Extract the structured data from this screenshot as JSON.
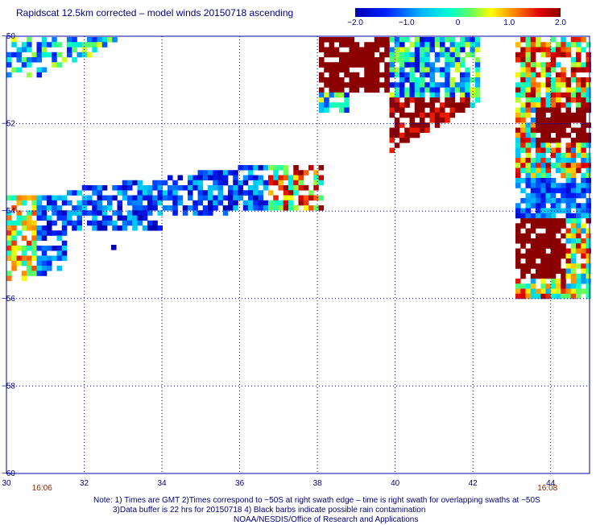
{
  "title": "Rapidscat 12.5km corrected – model winds 20150718 ascending",
  "colorbar": {
    "tick_labels": [
      "−2.0",
      "−1.0",
      "0",
      "1.0",
      "2.0"
    ],
    "tick_values": [
      -2.0,
      -1.0,
      0,
      1.0,
      2.0
    ],
    "range": [
      -2.0,
      2.0
    ]
  },
  "map": {
    "lon_range": [
      30,
      45
    ],
    "lat_range": [
      -50,
      -60
    ],
    "lon_ticks": [
      "30",
      "32",
      "34",
      "36",
      "38",
      "40",
      "42",
      "44"
    ],
    "lat_ticks": [
      "−50",
      "−52",
      "−54",
      "−56",
      "−58",
      "−60"
    ],
    "grid": "dotted",
    "swath_times": [
      {
        "label": "16:06",
        "lon": 31
      },
      {
        "label": "16:08",
        "lon": 44
      }
    ]
  },
  "notes": {
    "line1": "Note: 1) Times are GMT 2)Times correspond to −50S at right swath edge – time is right swath for overlapping swaths at −50S",
    "line2": "3)Data buffer is 22 hrs for 20150718 4) Black barbs indicate possible rain contamination",
    "line3": "NOAA/NESDIS/Office of Research and Applications"
  },
  "colors": {
    "text": "#000080",
    "grid": "#0000aa",
    "time_label": "#8b2500"
  }
}
